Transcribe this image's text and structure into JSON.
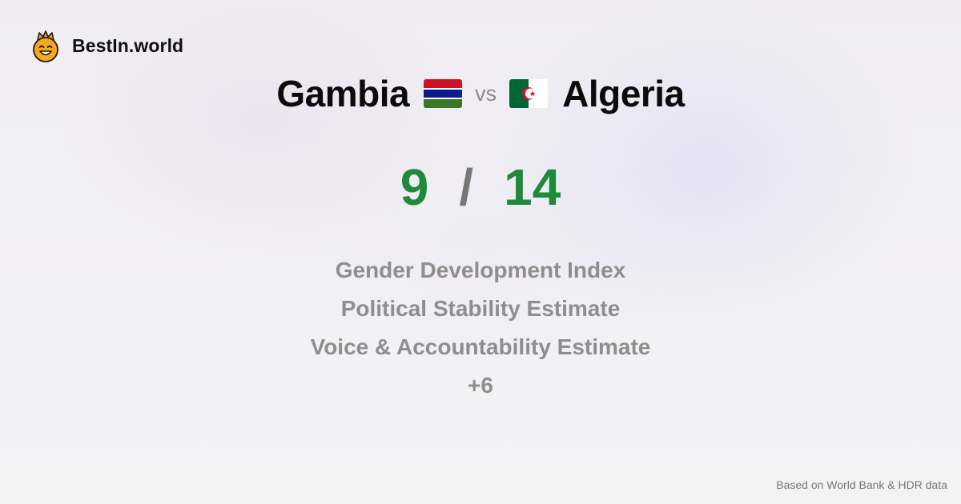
{
  "brand": {
    "name": "BestIn.world",
    "logo_icon": "crowned-smiley-icon"
  },
  "comparison": {
    "country_a": {
      "name": "Gambia",
      "flag_icon": "gambia-flag-icon",
      "score": "9"
    },
    "vs_label": "vs",
    "country_b": {
      "name": "Algeria",
      "flag_icon": "algeria-flag-icon",
      "score": "14"
    },
    "separator": "/"
  },
  "metrics": [
    "Gender Development Index",
    "Political Stability Estimate",
    "Voice & Accountability Estimate"
  ],
  "more_label": "+6",
  "footer": {
    "source_note": "Based on World Bank & HDR data"
  },
  "colors": {
    "score_green": "#1f8a3c",
    "muted_gray": "#8e8e8e",
    "title_black": "#0b0b0b"
  }
}
